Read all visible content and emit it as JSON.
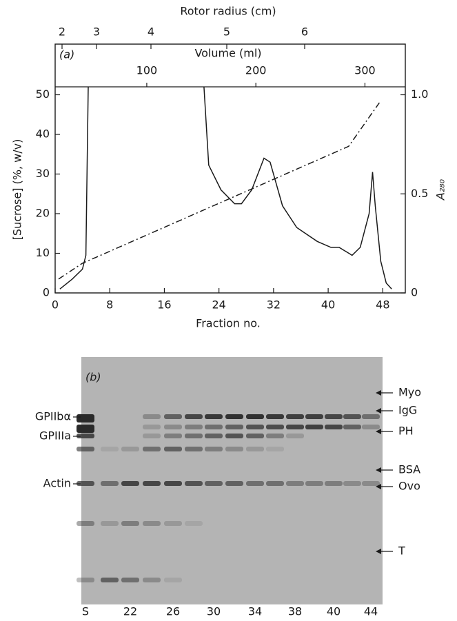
{
  "chart_data": {
    "type": "line",
    "panel_label": "(a)",
    "x_label": "Fraction no.",
    "y_label": "[Sucrose] (%, w/v)",
    "y2_label": "A₂₈₀",
    "x2_label": "Volume (ml)",
    "x3_label": "Rotor radius (cm)",
    "xlim": [
      0,
      51.3
    ],
    "xticks": [
      0,
      8,
      16,
      24,
      32,
      40,
      48
    ],
    "ylim": [
      0,
      52
    ],
    "yticks": [
      0,
      10,
      20,
      30,
      40,
      50
    ],
    "y2lim": [
      0,
      1.04
    ],
    "y2ticks": [
      0,
      0.5,
      {
        "value": 1,
        "label": "1.0"
      }
    ],
    "x2lim": [
      16,
      337
    ],
    "x2ticks": [
      100,
      200,
      300
    ],
    "x3ticks": [
      2,
      3,
      4,
      5,
      6
    ],
    "series": [
      {
        "style": "dashdot",
        "color": "#1a1a1a",
        "axis": "y",
        "x": [
          0.5,
          4,
          6,
          43,
          47.5
        ],
        "values": [
          3.5,
          7.5,
          9,
          37,
          48
        ]
      },
      {
        "style": "solid",
        "color": "#1a1a1a",
        "axis": "y2",
        "x": [
          0.7,
          2.5,
          4,
          4.5,
          4.85,
          12,
          21.8,
          22.5,
          24.3,
          26.3,
          27.3,
          28.8,
          30.6,
          31.5,
          33.3,
          35.4,
          38.4,
          40.4,
          41.6,
          43.5,
          44.7,
          46,
          46.5,
          46.9,
          47.7,
          48.5,
          49.3
        ],
        "values": [
          0.02,
          0.07,
          0.12,
          0.19,
          1.04,
          null,
          1.04,
          0.645,
          0.52,
          0.45,
          0.45,
          0.52,
          0.68,
          0.66,
          0.44,
          0.33,
          0.26,
          0.23,
          0.23,
          0.19,
          0.23,
          0.4,
          0.61,
          0.44,
          0.16,
          0.05,
          0.02
        ]
      }
    ]
  },
  "gel": {
    "panel_label": "(b)",
    "left_labels": [
      "GPIIbα",
      "GPIIIa",
      "Actin"
    ],
    "right_labels": [
      "Myo",
      "IgG",
      "PH",
      "BSA",
      "Ovo",
      "T"
    ],
    "lanes": [
      "S",
      "22",
      "26",
      "30",
      "34",
      "38",
      "40",
      "44"
    ]
  }
}
